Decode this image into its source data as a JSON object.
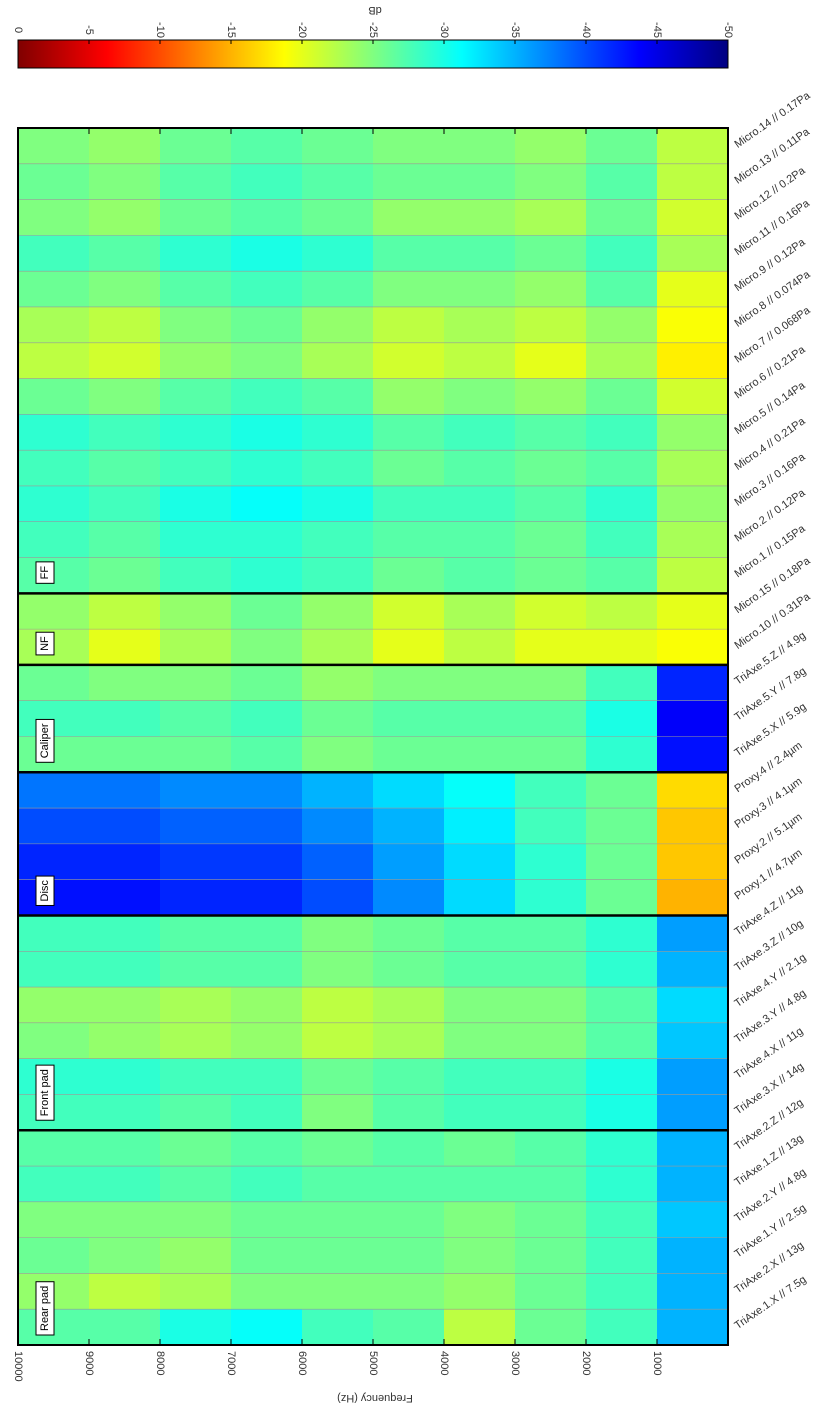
{
  "chart_data": {
    "type": "heatmap",
    "colormap": "jet",
    "clim": [
      0,
      -50
    ],
    "cticks": [
      0,
      -5,
      -10,
      -15,
      -20,
      -25,
      -30,
      -35,
      -40,
      -45,
      -50
    ],
    "clabel": "dB",
    "xlabel": "Frequency (Hz)",
    "xlim": [
      10000,
      0
    ],
    "xticks": [
      10000,
      9000,
      8000,
      7000,
      6000,
      5000,
      4000,
      3000,
      2000,
      1000
    ],
    "bins": [
      10000,
      9000,
      8000,
      7000,
      6000,
      5000,
      4000,
      3000,
      2000,
      1000,
      0
    ],
    "groups": [
      {
        "name": "FF",
        "rows": [
          {
            "name": "Micro.14 // 0.17Pa",
            "values": [
              -25,
              -24,
              -26,
              -27,
              -26,
              -25,
              -25,
              -24,
              -26,
              -22
            ]
          },
          {
            "name": "Micro.13 // 0.11Pa",
            "values": [
              -26,
              -25,
              -27,
              -28,
              -27,
              -26,
              -26,
              -25,
              -27,
              -22
            ]
          },
          {
            "name": "Micro.12 // 0.2Pa",
            "values": [
              -25,
              -24,
              -26,
              -27,
              -26,
              -24,
              -24,
              -23,
              -26,
              -21
            ]
          },
          {
            "name": "Micro.11 // 0.16Pa",
            "values": [
              -28,
              -27,
              -29,
              -30,
              -29,
              -27,
              -27,
              -26,
              -28,
              -23
            ]
          },
          {
            "name": "Micro.9 // 0.12Pa",
            "values": [
              -26,
              -25,
              -27,
              -28,
              -27,
              -25,
              -25,
              -24,
              -27,
              -20
            ]
          },
          {
            "name": "Micro.8 // 0.074Pa",
            "values": [
              -23,
              -22,
              -25,
              -26,
              -24,
              -22,
              -23,
              -22,
              -24,
              -19
            ]
          },
          {
            "name": "Micro.7 // 0.068Pa",
            "values": [
              -22,
              -21,
              -24,
              -25,
              -23,
              -21,
              -22,
              -20,
              -23,
              -18
            ]
          },
          {
            "name": "Micro.6 // 0.21Pa",
            "values": [
              -26,
              -25,
              -27,
              -28,
              -27,
              -24,
              -25,
              -24,
              -26,
              -21
            ]
          },
          {
            "name": "Micro.5 // 0.14Pa",
            "values": [
              -29,
              -28,
              -29,
              -30,
              -29,
              -27,
              -28,
              -27,
              -28,
              -24
            ]
          },
          {
            "name": "Micro.4 // 0.21Pa",
            "values": [
              -28,
              -27,
              -28,
              -29,
              -28,
              -26,
              -27,
              -26,
              -27,
              -23
            ]
          },
          {
            "name": "Micro.3 // 0.16Pa",
            "values": [
              -29,
              -28,
              -30,
              -31,
              -30,
              -28,
              -28,
              -27,
              -29,
              -24
            ]
          },
          {
            "name": "Micro.2 // 0.12Pa",
            "values": [
              -28,
              -27,
              -29,
              -29,
              -28,
              -27,
              -27,
              -26,
              -28,
              -23
            ]
          },
          {
            "name": "Micro.1 // 0.15Pa",
            "values": [
              -27,
              -26,
              -28,
              -29,
              -28,
              -26,
              -27,
              -26,
              -27,
              -22
            ]
          }
        ]
      },
      {
        "name": "NF",
        "rows": [
          {
            "name": "Micro.15 // 0.18Pa",
            "values": [
              -24,
              -22,
              -24,
              -26,
              -24,
              -21,
              -23,
              -21,
              -22,
              -20
            ]
          },
          {
            "name": "Micro.10 // 0.31Pa",
            "values": [
              -23,
              -20,
              -23,
              -25,
              -23,
              -20,
              -22,
              -20,
              -20,
              -19
            ]
          }
        ]
      },
      {
        "name": "Caliper",
        "rows": [
          {
            "name": "TriAxe.5.Z // 4.9g",
            "values": [
              -26,
              -25,
              -25,
              -26,
              -24,
              -25,
              -25,
              -25,
              -28,
              -42
            ]
          },
          {
            "name": "TriAxe.5.Y // 7.8g",
            "values": [
              -28,
              -28,
              -27,
              -28,
              -26,
              -27,
              -27,
              -27,
              -30,
              -44
            ]
          },
          {
            "name": "TriAxe.5.X // 5.9g",
            "values": [
              -26,
              -26,
              -26,
              -27,
              -25,
              -26,
              -26,
              -26,
              -29,
              -43
            ]
          }
        ]
      },
      {
        "name": "Disc",
        "rows": [
          {
            "name": "Proxy.4 // 2.4µm",
            "values": [
              -38,
              -38,
              -37,
              -37,
              -35,
              -33,
              -31,
              -28,
              -26,
              -17
            ]
          },
          {
            "name": "Proxy.3 // 4.1µm",
            "values": [
              -40,
              -40,
              -39,
              -39,
              -37,
              -35,
              -32,
              -28,
              -26,
              -16
            ]
          },
          {
            "name": "Proxy.2 // 5.1µm",
            "values": [
              -42,
              -42,
              -41,
              -41,
              -39,
              -36,
              -33,
              -29,
              -26,
              -16
            ]
          },
          {
            "name": "Proxy.1 // 4.7µm",
            "values": [
              -43,
              -43,
              -42,
              -42,
              -40,
              -37,
              -33,
              -29,
              -26,
              -15
            ]
          }
        ]
      },
      {
        "name": "Front pad",
        "rows": [
          {
            "name": "TriAxe.4.Z // 11g",
            "values": [
              -28,
              -28,
              -27,
              -27,
              -25,
              -26,
              -27,
              -27,
              -29,
              -36
            ]
          },
          {
            "name": "TriAxe.3.Z // 10g",
            "values": [
              -28,
              -28,
              -27,
              -27,
              -25,
              -26,
              -27,
              -27,
              -29,
              -35
            ]
          },
          {
            "name": "TriAxe.4.Y // 2.1g",
            "values": [
              -24,
              -24,
              -23,
              -24,
              -22,
              -23,
              -25,
              -25,
              -27,
              -33
            ]
          },
          {
            "name": "TriAxe.3.Y // 4.8g",
            "values": [
              -25,
              -24,
              -23,
              -24,
              -22,
              -23,
              -25,
              -25,
              -27,
              -34
            ]
          },
          {
            "name": "TriAxe.4.X // 11g",
            "values": [
              -29,
              -29,
              -28,
              -28,
              -26,
              -27,
              -28,
              -28,
              -30,
              -36
            ]
          },
          {
            "name": "TriAxe.3.X // 14g",
            "values": [
              -28,
              -28,
              -27,
              -28,
              -25,
              -27,
              -28,
              -28,
              -30,
              -36
            ]
          }
        ]
      },
      {
        "name": "Rear pad",
        "rows": [
          {
            "name": "TriAxe.2.Z // 12g",
            "values": [
              -27,
              -27,
              -26,
              -27,
              -26,
              -27,
              -26,
              -27,
              -29,
              -35
            ]
          },
          {
            "name": "TriAxe.1.Z // 13g",
            "values": [
              -28,
              -28,
              -27,
              -28,
              -27,
              -27,
              -27,
              -27,
              -29,
              -35
            ]
          },
          {
            "name": "TriAxe.2.Y // 4.8g",
            "values": [
              -25,
              -25,
              -25,
              -26,
              -26,
              -26,
              -25,
              -26,
              -28,
              -34
            ]
          },
          {
            "name": "TriAxe.1.Y // 2.5g",
            "values": [
              -26,
              -25,
              -24,
              -26,
              -26,
              -26,
              -25,
              -26,
              -28,
              -35
            ]
          },
          {
            "name": "TriAxe.2.X // 13g",
            "values": [
              -24,
              -22,
              -23,
              -25,
              -25,
              -25,
              -24,
              -26,
              -28,
              -35
            ]
          },
          {
            "name": "TriAxe.1.X // 7.5g",
            "values": [
              -27,
              -27,
              -30,
              -31,
              -28,
              -27,
              -22,
              -26,
              -28,
              -35
            ]
          }
        ]
      }
    ]
  }
}
